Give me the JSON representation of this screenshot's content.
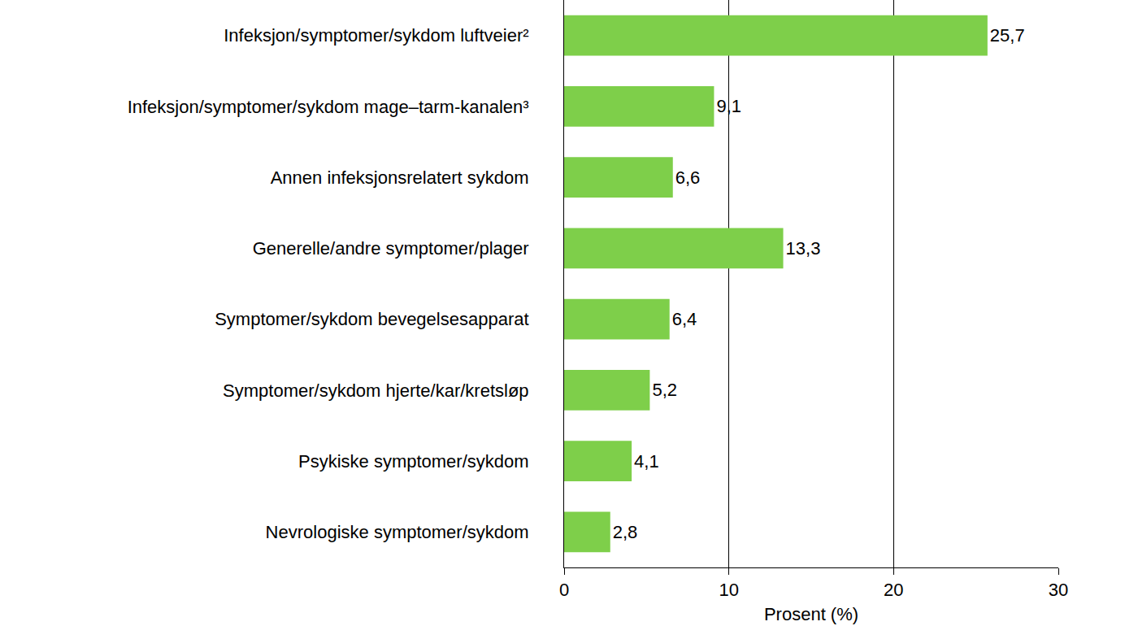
{
  "chart_data": {
    "type": "bar",
    "orientation": "horizontal",
    "categories": [
      "Infeksjon/symptomer/sykdom luftveier²",
      "Infeksjon/symptomer/sykdom mage–tarm-kanalen³",
      "Annen infeksjonsrelatert sykdom",
      "Generelle/andre symptomer/plager",
      "Symptomer/sykdom bevegelsesapparat",
      "Symptomer/sykdom hjerte/kar/kretsløp",
      "Psykiske symptomer/sykdom",
      "Nevrologiske symptomer/sykdom"
    ],
    "values": [
      25.7,
      9.1,
      6.6,
      13.3,
      6.4,
      5.2,
      4.1,
      2.8
    ],
    "value_labels": [
      "25,7",
      "9,1",
      "6,6",
      "13,3",
      "6,4",
      "5,2",
      "4,1",
      "2,8"
    ],
    "data_labels": true,
    "color": "#7ecf4a",
    "x_label": "Prosent (%)",
    "xlim": [
      0,
      30
    ],
    "xticks": [
      0,
      10,
      20,
      30
    ],
    "grid": true
  }
}
